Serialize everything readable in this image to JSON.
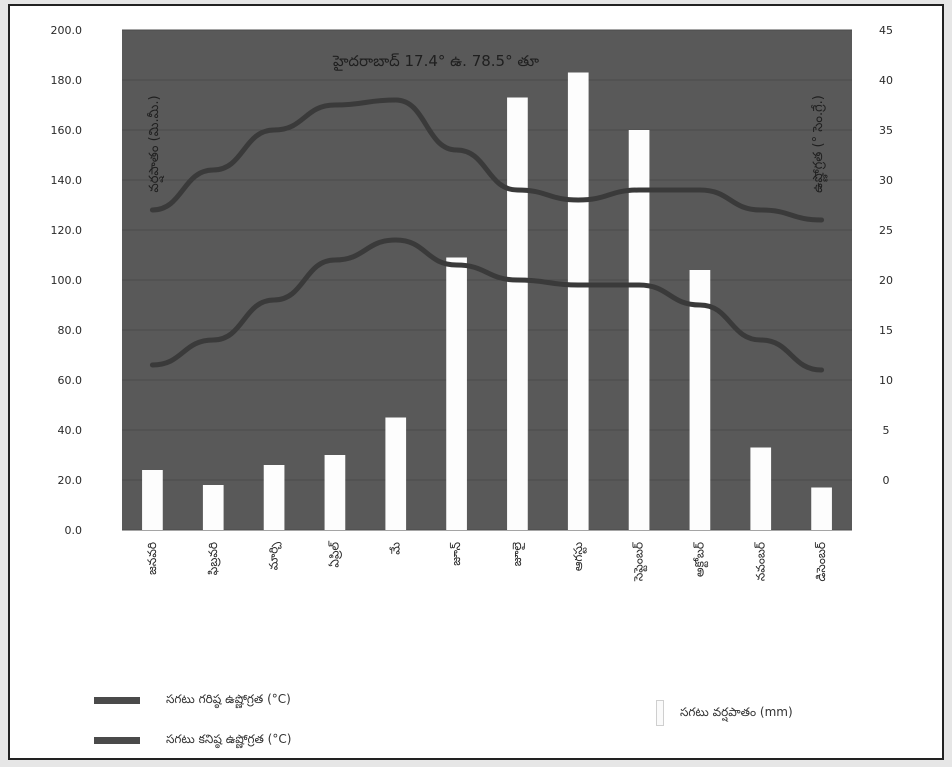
{
  "chart_data": {
    "type": "bar",
    "title": "హైదరాబాద్ 17.4° ఉ. 78.5° తూ",
    "left_axis_label": "వర్షపాతం (మి.మీ.)",
    "right_axis_label": "ఉష్ణోగ్రత (° సెం.గ్రే.)",
    "categories": [
      "జనవరి",
      "ఫిబ్రవరి",
      "మార్చి",
      "ఏప్రిల్",
      "మే",
      "జూన్",
      "జూలై",
      "ఆగస్టు",
      "సెప్టెంబర్",
      "అక్టోబర్",
      "నవంబర్",
      "డిసెంబర్"
    ],
    "left_ticks": [
      "0.0",
      "20.0",
      "40.0",
      "60.0",
      "80.0",
      "100.0",
      "120.0",
      "140.0",
      "160.0",
      "180.0",
      "200.0"
    ],
    "right_ticks": [
      "0",
      "5",
      "10",
      "15",
      "20",
      "25",
      "30",
      "35",
      "40",
      "45"
    ],
    "ylim_left": [
      0,
      200
    ],
    "ylim_right": [
      -5,
      45
    ],
    "series": [
      {
        "name": "సగటు వర్షపాతం (mm)",
        "kind": "bar",
        "axis": "left",
        "values": [
          24,
          18,
          26,
          30,
          45,
          109,
          173,
          183,
          160,
          104,
          33,
          17
        ]
      },
      {
        "name": "సగటు గరిష్ఠ ఉష్ణోగ్రత (°C)",
        "kind": "line",
        "axis": "right",
        "values": [
          27,
          31,
          35,
          37.5,
          38,
          33,
          29,
          28,
          29,
          29,
          27,
          26
        ]
      },
      {
        "name": "సగటు కనిష్ఠ ఉష్ణోగ్రత (°C)",
        "kind": "line",
        "axis": "right",
        "values": [
          11.5,
          14,
          18,
          22,
          24,
          21.5,
          20,
          19.5,
          19.5,
          17.5,
          14,
          11
        ]
      }
    ],
    "colors": {
      "plot_background": "#595959",
      "bar": "#fdfdfd",
      "line": "#3a3a3a",
      "grid": "#4b4b4b"
    },
    "grid": true,
    "legend": "bottom"
  }
}
